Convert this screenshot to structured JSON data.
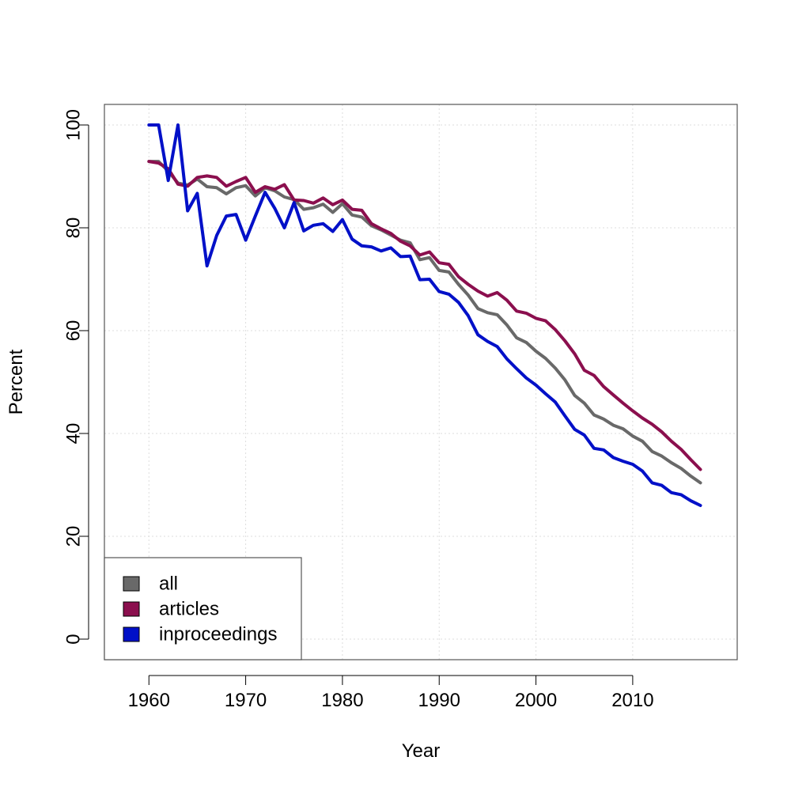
{
  "chart_data": {
    "type": "line",
    "title": "",
    "xlabel": "Year",
    "ylabel": "Percent",
    "xlim": [
      1955.4,
      2020.8
    ],
    "ylim": [
      -4,
      104
    ],
    "xticks": [
      1960,
      1970,
      1980,
      1990,
      2000,
      2010
    ],
    "yticks": [
      0,
      20,
      40,
      60,
      80,
      100
    ],
    "grid": true,
    "legend_position": "bottom-left",
    "x": [
      1960,
      1961,
      1962,
      1963,
      1964,
      1965,
      1966,
      1967,
      1968,
      1969,
      1970,
      1971,
      1972,
      1973,
      1974,
      1975,
      1976,
      1977,
      1978,
      1979,
      1980,
      1981,
      1982,
      1983,
      1984,
      1985,
      1986,
      1987,
      1988,
      1989,
      1990,
      1991,
      1992,
      1993,
      1994,
      1995,
      1996,
      1997,
      1998,
      1999,
      2000,
      2001,
      2002,
      2003,
      2004,
      2005,
      2006,
      2007,
      2008,
      2009,
      2010,
      2011,
      2012,
      2013,
      2014,
      2015,
      2016,
      2017
    ],
    "series": [
      {
        "name": "all",
        "color": "#696969",
        "values": [
          92.9,
          92.9,
          91.0,
          88.7,
          88.3,
          89.5,
          88.0,
          87.8,
          86.6,
          87.8,
          88.2,
          86.2,
          87.8,
          87.2,
          86.0,
          85.5,
          83.6,
          83.9,
          84.6,
          83.0,
          84.7,
          82.5,
          82.1,
          80.4,
          79.6,
          78.6,
          77.6,
          77.1,
          73.8,
          74.2,
          71.7,
          71.4,
          69.0,
          66.9,
          64.3,
          63.5,
          63.1,
          61.1,
          58.6,
          57.7,
          56.0,
          54.6,
          52.7,
          50.4,
          47.4,
          45.9,
          43.6,
          42.8,
          41.6,
          40.9,
          39.5,
          38.5,
          36.5,
          35.6,
          34.3,
          33.2,
          31.7,
          30.4
        ]
      },
      {
        "name": "articles",
        "color": "#8b0f4e",
        "values": [
          92.9,
          92.6,
          91.5,
          88.5,
          88.1,
          89.8,
          90.1,
          89.8,
          88.1,
          89.0,
          89.8,
          86.9,
          88.0,
          87.5,
          88.4,
          85.4,
          85.3,
          84.8,
          85.8,
          84.5,
          85.4,
          83.6,
          83.4,
          80.8,
          79.8,
          78.9,
          77.4,
          76.5,
          74.7,
          75.3,
          73.2,
          72.9,
          70.5,
          69.0,
          67.7,
          66.7,
          67.4,
          65.9,
          63.8,
          63.4,
          62.4,
          61.9,
          60.2,
          58.0,
          55.5,
          52.3,
          51.3,
          49.1,
          47.5,
          45.9,
          44.4,
          43.0,
          41.8,
          40.3,
          38.5,
          36.9,
          34.9,
          33.0
        ]
      },
      {
        "name": "inproceedings",
        "color": "#0010c8",
        "values": [
          100,
          100,
          89.2,
          100,
          83.3,
          86.7,
          72.6,
          78.5,
          82.3,
          82.6,
          77.6,
          82.3,
          86.9,
          83.8,
          80.0,
          84.9,
          79.4,
          80.5,
          80.8,
          79.3,
          81.6,
          77.8,
          76.5,
          76.3,
          75.5,
          76.1,
          74.4,
          74.5,
          69.9,
          70.0,
          67.6,
          67.1,
          65.5,
          62.9,
          59.2,
          57.9,
          56.9,
          54.5,
          52.6,
          50.8,
          49.4,
          47.7,
          46.1,
          43.4,
          40.8,
          39.7,
          37.1,
          36.8,
          35.3,
          34.6,
          34.0,
          32.7,
          30.4,
          29.9,
          28.5,
          28.1,
          26.9,
          26.0
        ]
      }
    ]
  }
}
